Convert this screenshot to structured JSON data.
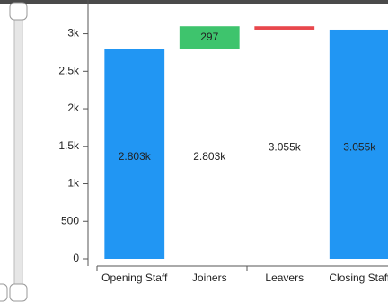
{
  "chart_data": {
    "type": "waterfall",
    "categories": [
      "Opening Staff",
      "Joiners",
      "Leavers",
      "Closing Staff"
    ],
    "values": [
      2803,
      297,
      -45,
      3055
    ],
    "value_labels": [
      "2.803k",
      "297",
      null,
      "3.055k"
    ],
    "subtotals": [
      {
        "value": 2803,
        "label": "2.803k"
      },
      {
        "value": 3055,
        "label": "3.055k"
      }
    ],
    "colors": {
      "total": "#2196f3",
      "increase": "#3ec46d",
      "decrease": "#e8474c"
    },
    "ylim": [
      0,
      3450
    ],
    "yticks": [
      0,
      500,
      {
        "value": 1000,
        "label": "1k"
      },
      {
        "value": 1500,
        "label": "1.5k"
      },
      {
        "value": 2000,
        "label": "2k"
      },
      {
        "value": 2500,
        "label": "2.5k"
      },
      {
        "value": 3000,
        "label": "3k"
      }
    ]
  }
}
